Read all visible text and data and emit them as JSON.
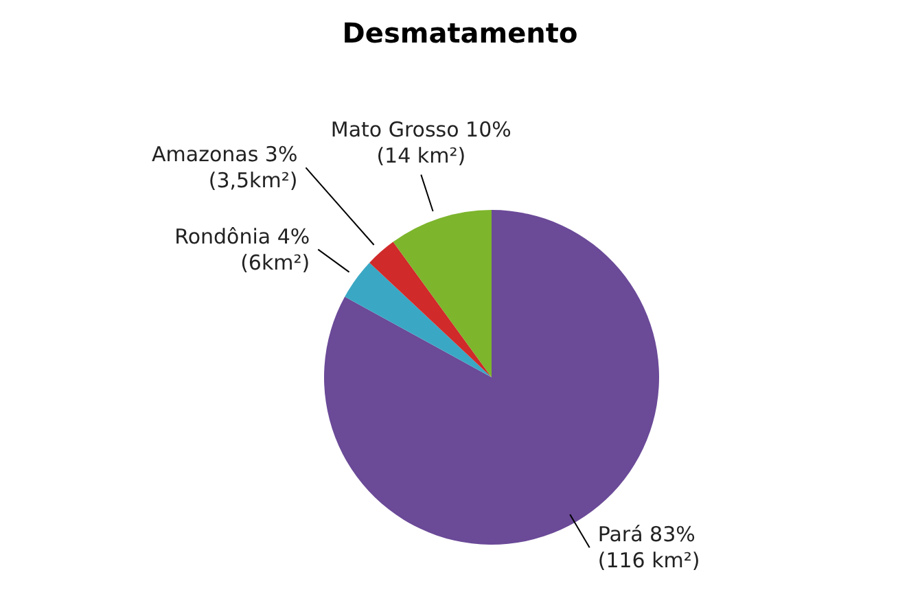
{
  "chart_data": {
    "type": "pie",
    "title": "Desmatamento",
    "categories": [
      "Pará",
      "Rondônia",
      "Amazonas",
      "Mato Grosso"
    ],
    "values": [
      83,
      4,
      3,
      10
    ],
    "colors": [
      "#6b4a98",
      "#3aa8c4",
      "#d02a2a",
      "#7db52c"
    ],
    "value_labels": [
      "83% (116 km²)",
      "4% (6km²)",
      "3% (3,5km²)",
      "10% (14 km²)"
    ],
    "legend": false
  }
}
